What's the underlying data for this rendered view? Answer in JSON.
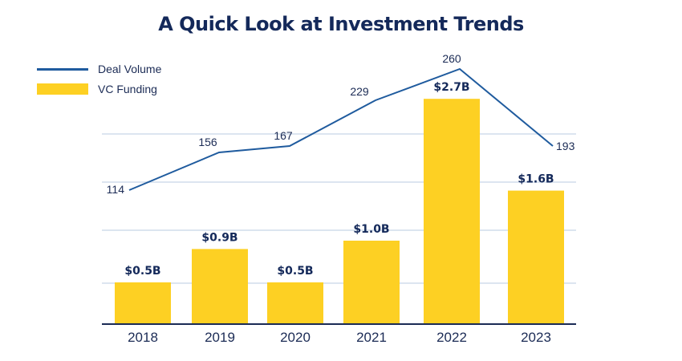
{
  "chart_data": {
    "type": "bar",
    "title": "A Quick Look at Investment Trends",
    "categories": [
      "2018",
      "2019",
      "2020",
      "2021",
      "2022",
      "2023"
    ],
    "series": [
      {
        "name": "VC Funding",
        "type": "bar",
        "values": [
          0.5,
          0.9,
          0.5,
          1.0,
          2.7,
          1.6
        ],
        "labels": [
          "$0.5B",
          "$0.9B",
          "$0.5B",
          "$1.0B",
          "$2.7B",
          "$1.6B"
        ],
        "color": "#fdd023"
      },
      {
        "name": "Deal Volume",
        "type": "line",
        "values": [
          114,
          156,
          167,
          229,
          260,
          193
        ],
        "labels": [
          "114",
          "156",
          "167",
          "229",
          "260",
          "193"
        ],
        "color": "#1f5b9e"
      }
    ],
    "legend": "top-left",
    "grid": true,
    "xlabel": "",
    "ylabel": ""
  }
}
